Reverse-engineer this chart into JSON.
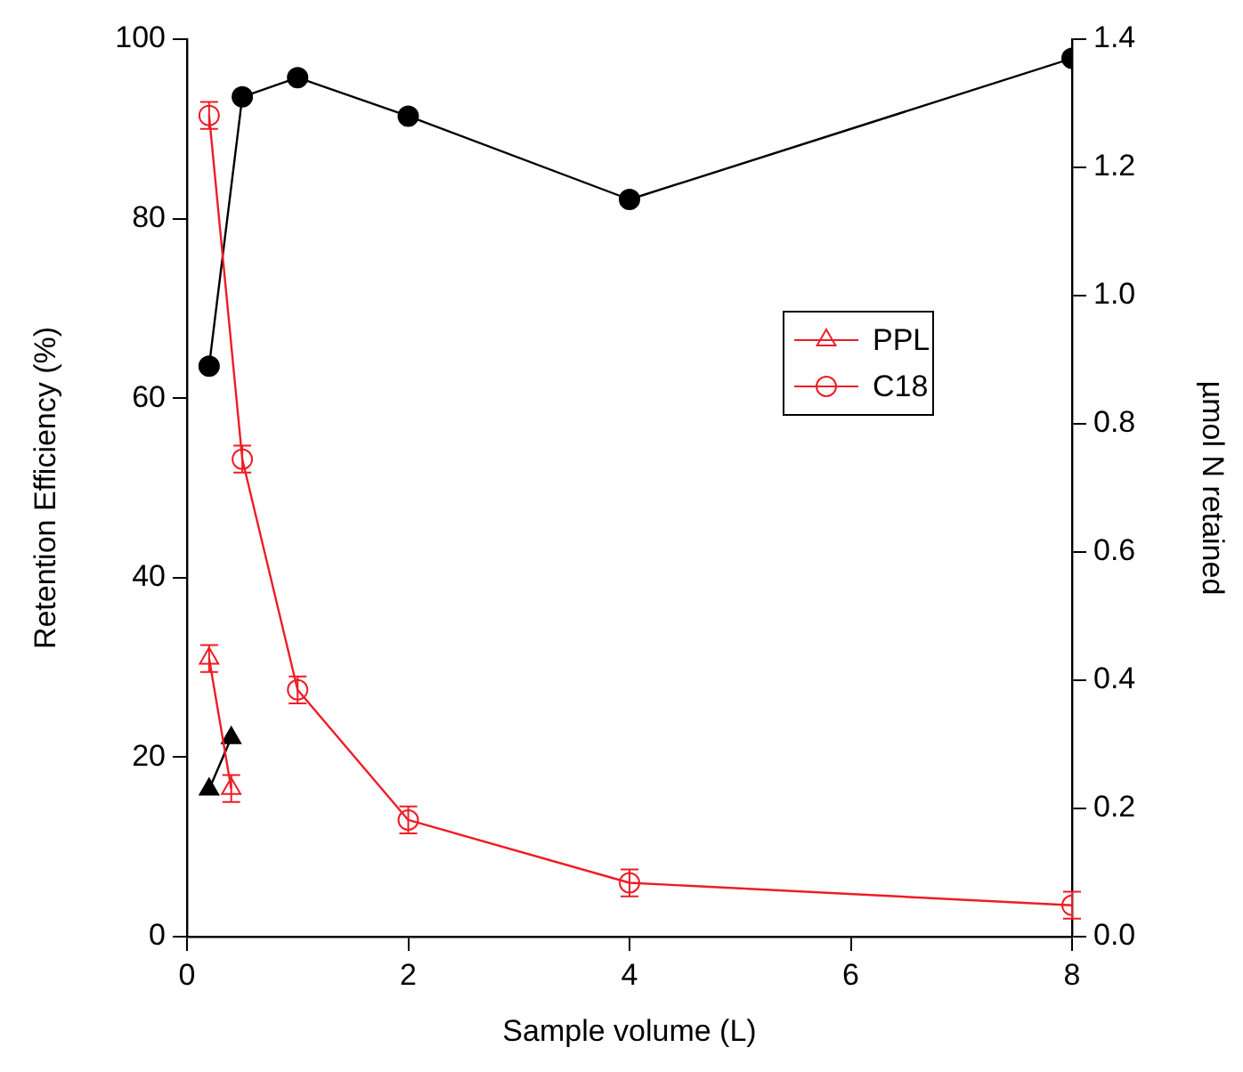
{
  "chart_data": {
    "type": "line",
    "xlabel": "Sample volume (L)",
    "ylabel": "Retention Efficiency (%)",
    "y2label": "µmol N retained",
    "xlim": [
      0,
      8
    ],
    "xticks": [
      0,
      2,
      4,
      6,
      8
    ],
    "ylim": [
      0,
      100
    ],
    "yticks": [
      0,
      20,
      40,
      60,
      80,
      100
    ],
    "y2lim": [
      0,
      1.4
    ],
    "y2ticks": [
      {
        "value": 0,
        "label": "0.0"
      },
      0.2,
      0.4,
      0.6,
      0.8,
      {
        "value": 1,
        "label": "1.0"
      },
      1.2,
      1.4
    ],
    "grid": false,
    "legend": "right",
    "line_style": "solid",
    "series": [
      {
        "name": "PPL",
        "color": "#ee1c25",
        "marker": "triangle",
        "x": [
          0.2,
          0.4
        ],
        "values": [
          31,
          16.5
        ],
        "errors": [
          1.5,
          1.5
        ]
      },
      {
        "name": "C18",
        "color": "#ee1c25",
        "marker": "circle",
        "x": [
          0.2,
          0.5,
          1,
          2,
          4,
          8
        ],
        "values": [
          91.5,
          53.2,
          27.5,
          13,
          6,
          3.5
        ],
        "errors": [
          1.5,
          1.5,
          1.5,
          1.5,
          1.5,
          1.5
        ]
      },
      {
        "color": "#000000",
        "marker": "triangle",
        "axis": "y2",
        "x": [
          0.2,
          0.4
        ],
        "values": [
          0.23,
          0.31
        ]
      },
      {
        "color": "#000000",
        "marker": "circle",
        "axis": "y2",
        "x": [
          0.2,
          0.5,
          1,
          2,
          4,
          8
        ],
        "values": [
          0.89,
          1.31,
          1.34,
          1.28,
          1.15,
          1.37
        ]
      }
    ]
  }
}
